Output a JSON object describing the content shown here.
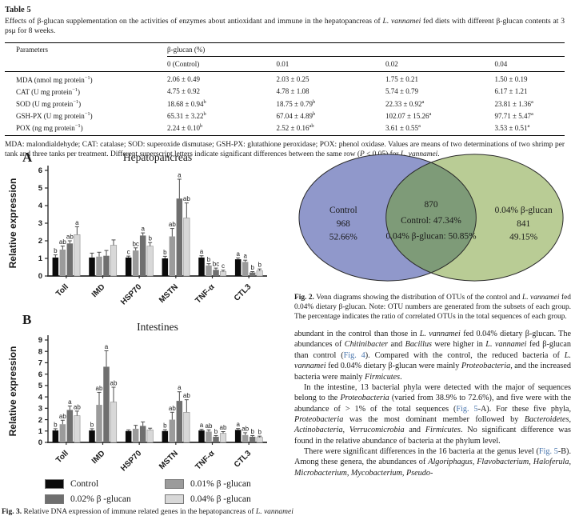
{
  "colors": {
    "link": "#4a76ad",
    "axis": "#2b2b2b"
  },
  "table5": {
    "label": "Table 5",
    "caption": [
      {
        "t": "Effects of β-glucan supplementation on the activities of enzymes about antioxidant and immune in the hepatopancreas of "
      },
      {
        "t": "L. vannamei",
        "i": true
      },
      {
        "t": " fed diets with different β-glucan contents at 3 psμ for 8 weeks."
      }
    ],
    "col_param": "Parameters",
    "group_header": "β-glucan (%)",
    "columns": [
      "0 (Control)",
      "0.01",
      "0.02",
      "0.04"
    ],
    "rows": [
      {
        "param": "MDA (nmol mg protein",
        "param_sup": "−1",
        "param_close": ")",
        "cells": [
          {
            "v": "2.06 ± 0.49"
          },
          {
            "v": "2.03 ± 0.25"
          },
          {
            "v": "1.75 ± 0.21"
          },
          {
            "v": "1.50 ± 0.19"
          }
        ]
      },
      {
        "param": "CAT (U mg protein",
        "param_sup": "−1",
        "param_close": ")",
        "cells": [
          {
            "v": "4.75 ± 0.92"
          },
          {
            "v": "4.78 ± 1.08"
          },
          {
            "v": "5.74 ± 0.79"
          },
          {
            "v": "6.17 ± 1.21"
          }
        ]
      },
      {
        "param": "SOD (U mg protein",
        "param_sup": "−1",
        "param_close": ")",
        "cells": [
          {
            "v": "18.68 ± 0.94",
            "s": "b"
          },
          {
            "v": "18.75 ± 0.79",
            "s": "b"
          },
          {
            "v": "22.33 ± 0.92",
            "s": "a"
          },
          {
            "v": "23.81 ± 1.36",
            "s": "a"
          }
        ]
      },
      {
        "param": "GSH-PX (U mg protein",
        "param_sup": "−1",
        "param_close": ")",
        "cells": [
          {
            "v": "65.31 ± 3.22",
            "s": "b"
          },
          {
            "v": "67.04 ± 4.89",
            "s": "b"
          },
          {
            "v": "102.07 ± 15.26",
            "s": "a"
          },
          {
            "v": "97.71 ± 5.47",
            "s": "a"
          }
        ]
      },
      {
        "param": "POX (ng mg protein",
        "param_sup": "−1",
        "param_close": ")",
        "cells": [
          {
            "v": "2.24 ± 0.10",
            "s": "b"
          },
          {
            "v": "2.52 ± 0.16",
            "s": "ab"
          },
          {
            "v": "3.61 ± 0.55",
            "s": "a"
          },
          {
            "v": "3.53 ± 0.51",
            "s": "a"
          }
        ]
      }
    ],
    "footnote": [
      {
        "t": "MDA: malondialdehyde; CAT: catalase; SOD: superoxide dismutase; GSH-PX: glutathione peroxidase; POX: phenol oxidase. Values are means of two determinations of two shrimp per tank and three tanks per treatment. Different superscript letters indicate significant differences between the same row ("
      },
      {
        "t": "P",
        "i": true
      },
      {
        "t": " < 0.05) for "
      },
      {
        "t": "L. vannamei",
        "i": true
      },
      {
        "t": "."
      }
    ]
  },
  "chart_data": [
    {
      "type": "bar",
      "panel": "A",
      "title": "Hepatopancreas",
      "xlabel": "",
      "ylabel": "Relative expression",
      "ylim": [
        0,
        6
      ],
      "ytick_step": 1,
      "grid": false,
      "legend_position": "below-panel-B",
      "categories": [
        "Toll",
        "IMD",
        "HSP70",
        "MSTN",
        "TNF-α",
        "CTL3"
      ],
      "series": [
        {
          "name": "Control",
          "color": "#0b0b0b",
          "values": [
            1.05,
            1.05,
            1.05,
            1.0,
            1.05,
            0.95
          ],
          "errors": [
            0.15,
            0.25,
            0.08,
            0.12,
            0.1,
            0.08
          ],
          "letters": [
            "b",
            "",
            "c",
            "b",
            "a",
            "a"
          ]
        },
        {
          "name": "0.01% β -glucan",
          "color": "#9b9b9b",
          "values": [
            1.5,
            1.1,
            1.45,
            2.25,
            0.6,
            0.8
          ],
          "errors": [
            0.2,
            0.25,
            0.15,
            0.45,
            0.1,
            0.1
          ],
          "letters": [
            "ab",
            "",
            "bc",
            "ab",
            "b",
            "a"
          ]
        },
        {
          "name": "0.02% β -glucan",
          "color": "#6f6f6f",
          "values": [
            1.85,
            1.15,
            2.3,
            4.4,
            0.35,
            0.2
          ],
          "errors": [
            0.15,
            0.3,
            0.15,
            1.1,
            0.1,
            0.05
          ],
          "letters": [
            "ab",
            "",
            "a",
            "a",
            "bc",
            "b"
          ]
        },
        {
          "name": "0.04% β -glucan",
          "color": "#d8d8d8",
          "values": [
            2.35,
            1.75,
            1.7,
            3.3,
            0.25,
            0.3
          ],
          "errors": [
            0.45,
            0.3,
            0.2,
            0.85,
            0.08,
            0.1
          ],
          "letters": [
            "a",
            "",
            "b",
            "ab",
            "c",
            "b"
          ]
        }
      ]
    },
    {
      "type": "bar",
      "panel": "B",
      "title": "Intestines",
      "xlabel": "",
      "ylabel": "Relative expression",
      "ylim": [
        0,
        9
      ],
      "ytick_step": 1,
      "grid": false,
      "legend_position": "below",
      "categories": [
        "Toll",
        "IMD",
        "HSP70",
        "MSTN",
        "TNF-α",
        "CTL3"
      ],
      "series": [
        {
          "name": "Control",
          "color": "#0b0b0b",
          "values": [
            1.05,
            1.05,
            1.0,
            1.0,
            1.05,
            1.1
          ],
          "errors": [
            0.15,
            0.15,
            0.1,
            0.12,
            0.1,
            0.12
          ],
          "letters": [
            "b",
            "b",
            "",
            "b",
            "a",
            "a"
          ]
        },
        {
          "name": "0.01% β -glucan",
          "color": "#9b9b9b",
          "values": [
            1.6,
            3.3,
            1.2,
            2.0,
            0.95,
            0.65
          ],
          "errors": [
            0.35,
            1.1,
            0.3,
            0.65,
            0.15,
            0.2
          ],
          "letters": [
            "ab",
            "ab",
            "",
            "ab",
            "ab",
            "ab"
          ]
        },
        {
          "name": "0.02% β -glucan",
          "color": "#6f6f6f",
          "values": [
            2.85,
            6.65,
            1.45,
            3.65,
            0.5,
            0.5
          ],
          "errors": [
            0.35,
            1.4,
            0.35,
            0.8,
            0.1,
            0.1
          ],
          "letters": [
            "a",
            "a",
            "",
            "a",
            "b",
            "b"
          ]
        },
        {
          "name": "0.04% β -glucan",
          "color": "#d8d8d8",
          "values": [
            2.35,
            3.55,
            1.1,
            2.65,
            0.8,
            0.45
          ],
          "errors": [
            0.4,
            1.3,
            0.15,
            1.1,
            0.15,
            0.1
          ],
          "letters": [
            "ab",
            "ab",
            "",
            "ab",
            "ab",
            "b"
          ]
        }
      ]
    }
  ],
  "legend": {
    "items": [
      {
        "label": "Control",
        "color": "#0b0b0b"
      },
      {
        "label": "0.01% β -glucan",
        "color": "#9b9b9b"
      },
      {
        "label": "0.02% β -glucan",
        "color": "#6f6f6f"
      },
      {
        "label": "0.04% β -glucan",
        "color": "#d8d8d8"
      }
    ]
  },
  "venn": {
    "left": {
      "label": "Control",
      "count": "968",
      "pct": "52.66%",
      "color": "#9098cb"
    },
    "right": {
      "label": "0.04% β-glucan",
      "count": "841",
      "pct": "49.15%",
      "color": "#b9cc95"
    },
    "overlap_color": "#7e9b78",
    "center": {
      "count": "870",
      "line2": "Control:  47.34%",
      "line3": "0.04% β-glucan: 50.85%"
    }
  },
  "fig2_caption": [
    {
      "t": "Fig. 2.",
      "b": true
    },
    {
      "t": " Venn diagrams showing the distribution of OTUs of the control and "
    },
    {
      "t": "L. vannamei",
      "i": true
    },
    {
      "t": " fed 0.04% dietary β-glucan. Note: OTU numbers are generated from the subsets of each group. The percentage indicates the ratio of correlated OTUs in the total sequences of each group."
    }
  ],
  "body": {
    "paragraphs": [
      [
        {
          "t": "abundant in the control than those in "
        },
        {
          "t": "L. vannamei",
          "i": true
        },
        {
          "t": " fed 0.04% dietary β-glucan. The abundances of "
        },
        {
          "t": "Chitinibacter",
          "i": true
        },
        {
          "t": " and "
        },
        {
          "t": "Bacillus",
          "i": true
        },
        {
          "t": " were higher in "
        },
        {
          "t": "L. vannamei",
          "i": true
        },
        {
          "t": " fed β-glucan than control ("
        },
        {
          "t": "Fig. 4",
          "c": true
        },
        {
          "t": "). Compared with the control, the reduced bacteria of "
        },
        {
          "t": "L. vannamei",
          "i": true
        },
        {
          "t": " fed 0.04% dietary β-glucan were mainly "
        },
        {
          "t": "Proteobacteria",
          "i": true
        },
        {
          "t": ", and the increased bacteria were mainly "
        },
        {
          "t": "Firmicutes",
          "i": true
        },
        {
          "t": "."
        }
      ],
      [
        {
          "t": "In the intestine, 13 bacterial phyla were detected with the major of sequences belong to the "
        },
        {
          "t": "Proteobacteria",
          "i": true
        },
        {
          "t": " (varied from 38.9% to 72.6%), and five were with the abundance of > 1% of the total sequences ("
        },
        {
          "t": "Fig. 5",
          "c": true
        },
        {
          "t": "-A). For these five phyla, "
        },
        {
          "t": "Proteobacteria",
          "i": true
        },
        {
          "t": " was the most dominant member followed by "
        },
        {
          "t": "Bacteroidetes",
          "i": true
        },
        {
          "t": ", "
        },
        {
          "t": "Actinobacteria",
          "i": true
        },
        {
          "t": ", "
        },
        {
          "t": "Verrucomicrobia",
          "i": true
        },
        {
          "t": " and "
        },
        {
          "t": "Firmicutes",
          "i": true
        },
        {
          "t": ". No significant difference was found in the relative abundance of bacteria at the phylum level."
        }
      ],
      [
        {
          "t": "There were significant differences in the 16 bacteria at the genus level ("
        },
        {
          "t": "Fig. 5",
          "c": true
        },
        {
          "t": "-B). Among these genera, the abundances of "
        },
        {
          "t": "Algoriphagus",
          "i": true
        },
        {
          "t": ", "
        },
        {
          "t": "Flavobacterium",
          "i": true
        },
        {
          "t": ", "
        },
        {
          "t": "Haloferula",
          "i": true
        },
        {
          "t": ", "
        },
        {
          "t": "Microbacterium",
          "i": true
        },
        {
          "t": ", "
        },
        {
          "t": "Mycobacterium",
          "i": true
        },
        {
          "t": ", "
        },
        {
          "t": "Pseudo-",
          "i": true
        }
      ]
    ]
  },
  "fig3_caption": [
    {
      "t": "Fig. 3.",
      "b": true
    },
    {
      "t": " Relative DNA expression of immune related genes in the hepatopancreas of "
    },
    {
      "t": "L. vannamei",
      "i": true
    }
  ]
}
